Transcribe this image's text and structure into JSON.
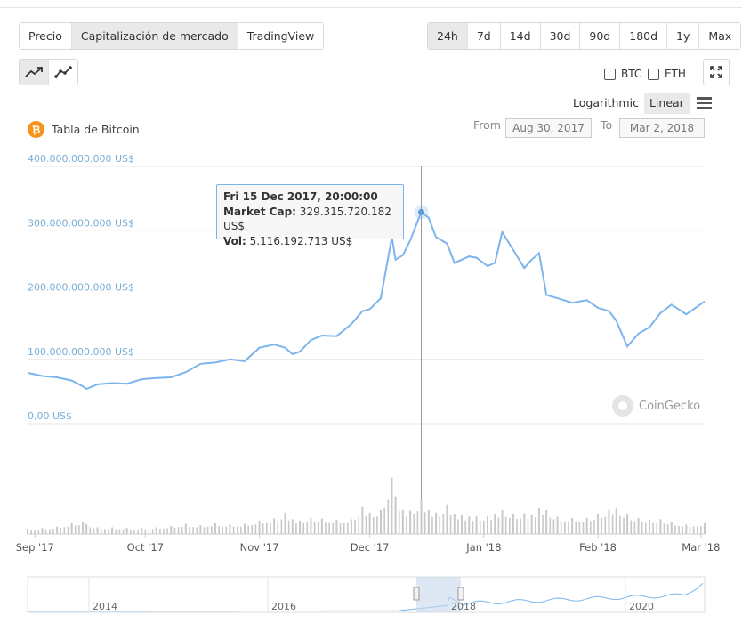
{
  "tabs": [
    {
      "label": "Precio",
      "active": false
    },
    {
      "label": "Capitalización de mercado",
      "active": true
    },
    {
      "label": "TradingView",
      "active": false
    }
  ],
  "ranges": [
    {
      "label": "24h",
      "active": true
    },
    {
      "label": "7d",
      "active": false
    },
    {
      "label": "14d",
      "active": false
    },
    {
      "label": "30d",
      "active": false
    },
    {
      "label": "90d",
      "active": false
    },
    {
      "label": "180d",
      "active": false
    },
    {
      "label": "1y",
      "active": false
    },
    {
      "label": "Max",
      "active": false
    }
  ],
  "chart_types": [
    {
      "icon": "line-chart-icon",
      "active": true
    },
    {
      "icon": "ohlc-chart-icon",
      "active": false
    }
  ],
  "compare": {
    "btc": "BTC",
    "eth": "ETH"
  },
  "scale": {
    "log": "Logarithmic",
    "linear": "Linear",
    "selected": "Linear"
  },
  "title": "Tabla de Bitcoin",
  "date_range": {
    "from_label": "From",
    "from": "Aug 30, 2017",
    "to_label": "To",
    "to": "Mar 2, 2018"
  },
  "tooltip": {
    "date": "Fri 15 Dec 2017, 20:00:00",
    "cap_label": "Market Cap:",
    "cap_value": "329.315.720.182 US$",
    "vol_label": "Vol:",
    "vol_value": "5.116.192.713 US$"
  },
  "watermark": "CoinGecko",
  "colors": {
    "line": "#7cb5ec",
    "volume": "#c8c8c8",
    "navigator_fill": "#e8f2fb",
    "grid": "#e6e6e6",
    "axis_label": "#7aaed6"
  },
  "chart_data": {
    "type": "line",
    "yaxis_labels": [
      "400.000.000.000 US$",
      "300.000.000.000 US$",
      "200.000.000.000 US$",
      "100.000.000.000 US$",
      "0,00 US$"
    ],
    "ylim": [
      0,
      400000000000
    ],
    "xaxis_labels": [
      "Sep '17",
      "Oct '17",
      "Nov '17",
      "Dec '17",
      "Jan '18",
      "Feb '18",
      "Mar '18"
    ],
    "x": [
      "2017-08-30",
      "2017-09-03",
      "2017-09-07",
      "2017-09-11",
      "2017-09-14",
      "2017-09-15",
      "2017-09-18",
      "2017-09-22",
      "2017-09-26",
      "2017-09-30",
      "2017-10-04",
      "2017-10-08",
      "2017-10-12",
      "2017-10-16",
      "2017-10-20",
      "2017-10-24",
      "2017-10-28",
      "2017-11-01",
      "2017-11-05",
      "2017-11-08",
      "2017-11-10",
      "2017-11-12",
      "2017-11-15",
      "2017-11-18",
      "2017-11-22",
      "2017-11-26",
      "2017-11-29",
      "2017-12-01",
      "2017-12-04",
      "2017-12-07",
      "2017-12-08",
      "2017-12-10",
      "2017-12-12",
      "2017-12-15",
      "2017-12-17",
      "2017-12-19",
      "2017-12-22",
      "2017-12-24",
      "2017-12-26",
      "2017-12-28",
      "2017-12-30",
      "2018-01-02",
      "2018-01-04",
      "2018-01-06",
      "2018-01-09",
      "2018-01-12",
      "2018-01-14",
      "2018-01-16",
      "2018-01-18",
      "2018-01-21",
      "2018-01-25",
      "2018-01-29",
      "2018-02-01",
      "2018-02-04",
      "2018-02-06",
      "2018-02-09",
      "2018-02-12",
      "2018-02-15",
      "2018-02-18",
      "2018-02-21",
      "2018-02-25",
      "2018-03-02"
    ],
    "series": [
      {
        "values": [
          79,
          74,
          72,
          67,
          58,
          54,
          61,
          63,
          62,
          69,
          71,
          72,
          80,
          93,
          95,
          100,
          97,
          118,
          123,
          118,
          108,
          112,
          130,
          137,
          136,
          155,
          175,
          178,
          195,
          290,
          255,
          262,
          285,
          329,
          320,
          290,
          280,
          250,
          255,
          260,
          258,
          245,
          250,
          298,
          270,
          242,
          255,
          265,
          200,
          195,
          188,
          192,
          180,
          175,
          160,
          120,
          140,
          150,
          172,
          185,
          170,
          190
        ],
        "cap_scale": "billions US$"
      }
    ],
    "volume_billions": [
      0.8,
      0.9,
      1.1,
      1.6,
      1.8,
      1.5,
      1.0,
      1.0,
      0.9,
      0.9,
      1.0,
      1.2,
      1.5,
      1.3,
      1.6,
      1.4,
      1.5,
      2.0,
      2.3,
      3.2,
      2.2,
      2.0,
      2.4,
      2.3,
      2.1,
      2.2,
      4.0,
      3.2,
      3.6,
      8.4,
      5.6,
      3.6,
      3.5,
      5.1,
      3.6,
      3.2,
      4.4,
      3.0,
      2.8,
      2.6,
      2.6,
      2.7,
      2.9,
      3.6,
      3.0,
      3.1,
      2.8,
      3.8,
      3.6,
      2.6,
      2.4,
      2.4,
      3.0,
      3.6,
      3.9,
      2.9,
      2.4,
      2.1,
      2.2,
      1.8,
      1.4,
      1.6
    ],
    "navigator_labels": [
      "2014",
      "2016",
      "2018",
      "2020"
    ]
  }
}
